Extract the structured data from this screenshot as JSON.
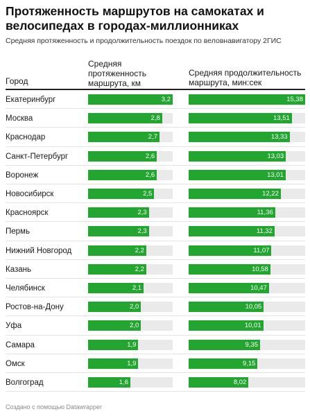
{
  "title": "Протяженность маршрутов на самокатах и велосипедах в городах-миллионниках",
  "subtitle": "Средняя протяженность и продолжительность поездок по веловнавигатору 2ГИС",
  "headers": {
    "city": "Город",
    "distance": "Средняя протяженность маршрута, км",
    "duration": "Средняя продолжительность маршрута, мин:сек"
  },
  "footer": "Создано с помощью Datawrapper",
  "colors": {
    "bar": "#22a630",
    "track": "#eaeaea",
    "rule": "#222222"
  },
  "chart_data": {
    "type": "table",
    "columns": [
      "Город",
      "Средняя протяженность маршрута, км",
      "Средняя продолжительность маршрута, мин:сек"
    ],
    "distance_range": [
      0,
      3.2
    ],
    "duration_range_seconds": [
      0,
      938
    ],
    "rows": [
      {
        "city": "Екатеринбург",
        "distance": 3.2,
        "distance_label": "3,2",
        "duration": "15:38",
        "duration_label": "15,38"
      },
      {
        "city": "Москва",
        "distance": 2.8,
        "distance_label": "2,8",
        "duration": "13:51",
        "duration_label": "13,51"
      },
      {
        "city": "Краснодар",
        "distance": 2.7,
        "distance_label": "2,7",
        "duration": "13:33",
        "duration_label": "13,33"
      },
      {
        "city": "Санкт-Петербург",
        "distance": 2.6,
        "distance_label": "2,6",
        "duration": "13:03",
        "duration_label": "13,03"
      },
      {
        "city": "Воронеж",
        "distance": 2.6,
        "distance_label": "2,6",
        "duration": "13:01",
        "duration_label": "13,01"
      },
      {
        "city": "Новосибирск",
        "distance": 2.5,
        "distance_label": "2,5",
        "duration": "12:22",
        "duration_label": "12,22"
      },
      {
        "city": "Красноярск",
        "distance": 2.3,
        "distance_label": "2,3",
        "duration": "11:36",
        "duration_label": "11,36"
      },
      {
        "city": "Пермь",
        "distance": 2.3,
        "distance_label": "2,3",
        "duration": "11:32",
        "duration_label": "11,32"
      },
      {
        "city": "Нижний Новгород",
        "distance": 2.2,
        "distance_label": "2,2",
        "duration": "11:07",
        "duration_label": "11,07"
      },
      {
        "city": "Казань",
        "distance": 2.2,
        "distance_label": "2,2",
        "duration": "10:58",
        "duration_label": "10,58"
      },
      {
        "city": "Челябинск",
        "distance": 2.1,
        "distance_label": "2,1",
        "duration": "10:47",
        "duration_label": "10,47"
      },
      {
        "city": "Ростов-на-Дону",
        "distance": 2.0,
        "distance_label": "2,0",
        "duration": "10:05",
        "duration_label": "10,05"
      },
      {
        "city": "Уфа",
        "distance": 2.0,
        "distance_label": "2,0",
        "duration": "10:01",
        "duration_label": "10,01"
      },
      {
        "city": "Самара",
        "distance": 1.9,
        "distance_label": "1,9",
        "duration": "9:35",
        "duration_label": "9,35"
      },
      {
        "city": "Омск",
        "distance": 1.9,
        "distance_label": "1,9",
        "duration": "9:15",
        "duration_label": "9,15"
      },
      {
        "city": "Волгоград",
        "distance": 1.6,
        "distance_label": "1,6",
        "duration": "8:02",
        "duration_label": "8,02"
      }
    ]
  }
}
